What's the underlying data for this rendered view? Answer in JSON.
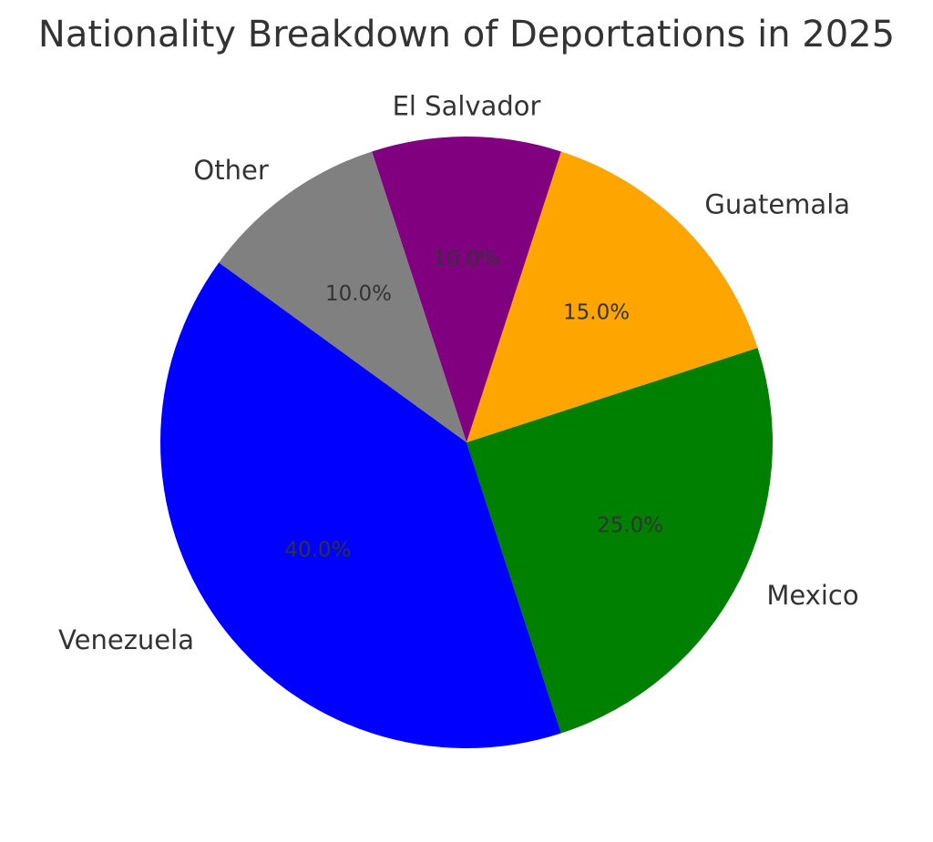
{
  "chart_data": {
    "type": "pie",
    "title": "Nationality Breakdown of Deportations in 2025",
    "categories": [
      "Mexico",
      "Guatemala",
      "El Salvador",
      "Other",
      "Venezuela"
    ],
    "values": [
      25.0,
      15.0,
      10.0,
      10.0,
      40.0
    ],
    "percent_labels": [
      "25.0%",
      "15.0%",
      "10.0%",
      "10.0%",
      "40.0%"
    ],
    "colors": [
      "#008000",
      "#FFA500",
      "#800080",
      "#808080",
      "#0000FF"
    ],
    "start_angle_deg": -72,
    "direction": "counterclockwise",
    "legend": "none"
  }
}
